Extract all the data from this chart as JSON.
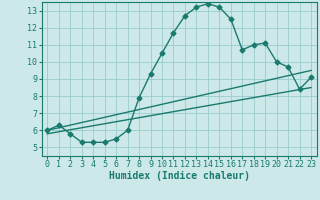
{
  "title": "",
  "xlabel": "Humidex (Indice chaleur)",
  "ylabel": "",
  "bg_color": "#cce8e8",
  "grid_color": "#99cccc",
  "line_color": "#1a7a6e",
  "xlim": [
    -0.5,
    23.5
  ],
  "ylim": [
    4.5,
    13.5
  ],
  "xticks": [
    0,
    1,
    2,
    3,
    4,
    5,
    6,
    7,
    8,
    9,
    10,
    11,
    12,
    13,
    14,
    15,
    16,
    17,
    18,
    19,
    20,
    21,
    22,
    23
  ],
  "yticks": [
    5,
    6,
    7,
    8,
    9,
    10,
    11,
    12,
    13
  ],
  "main_x": [
    0,
    1,
    2,
    3,
    4,
    5,
    6,
    7,
    8,
    9,
    10,
    11,
    12,
    13,
    14,
    15,
    16,
    17,
    18,
    19,
    20,
    21,
    22,
    23
  ],
  "main_y": [
    6.0,
    6.3,
    5.8,
    5.3,
    5.3,
    5.3,
    5.5,
    6.0,
    7.9,
    9.3,
    10.5,
    11.7,
    12.7,
    13.2,
    13.4,
    13.2,
    12.5,
    10.7,
    11.0,
    11.1,
    10.0,
    9.7,
    8.4,
    9.1
  ],
  "line1_x": [
    0,
    23
  ],
  "line1_y": [
    6.0,
    9.5
  ],
  "line2_x": [
    0,
    23
  ],
  "line2_y": [
    5.8,
    8.5
  ],
  "marker": "D",
  "markersize": 2.5,
  "linewidth": 1.0,
  "tick_fontsize": 6,
  "label_fontsize": 7
}
